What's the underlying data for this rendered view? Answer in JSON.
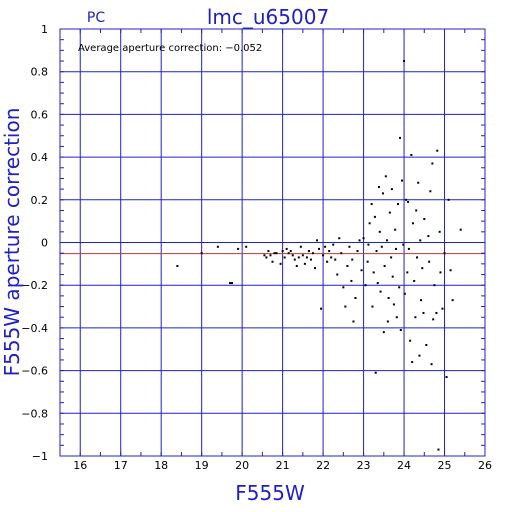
{
  "chart_data": {
    "type": "scatter",
    "title": "lmc_u65007",
    "subtitle": "PC",
    "xlabel": "F555W",
    "ylabel": "F555W aperture correction",
    "xlim": [
      15.5,
      26
    ],
    "ylim": [
      -1,
      1
    ],
    "x_ticks": [
      16,
      17,
      18,
      19,
      20,
      21,
      22,
      23,
      24,
      25,
      26
    ],
    "y_ticks": [
      -1,
      -0.8,
      -0.6,
      -0.4,
      -0.2,
      0,
      0.2,
      0.4,
      0.6,
      0.8,
      1
    ],
    "x_tick_labels": [
      "16",
      "17",
      "18",
      "19",
      "20",
      "21",
      "22",
      "23",
      "24",
      "25",
      "26"
    ],
    "y_tick_labels": [
      "−1",
      "−0.8",
      "−0.6",
      "−0.4",
      "−0.2",
      "0",
      "0.2",
      "0.4",
      "0.6",
      "0.8",
      "1"
    ],
    "grid": true,
    "annotation": "Average aperture correction: −0.052",
    "average_line_y": -0.052,
    "colors": {
      "axes": "#2020c8",
      "grid": "#2020c8",
      "points": "#000000",
      "average_line": "#c83232",
      "text": "#2020c8"
    },
    "points": [
      [
        18.4,
        -0.11
      ],
      [
        19.0,
        -0.05
      ],
      [
        19.4,
        -0.02
      ],
      [
        19.7,
        -0.19
      ],
      [
        19.75,
        -0.19
      ],
      [
        19.9,
        -0.03
      ],
      [
        20.1,
        -0.02
      ],
      [
        20.55,
        -0.06
      ],
      [
        20.6,
        -0.07
      ],
      [
        20.65,
        -0.04
      ],
      [
        20.7,
        -0.06
      ],
      [
        20.75,
        -0.09
      ],
      [
        20.8,
        -0.05
      ],
      [
        20.85,
        -0.05
      ],
      [
        20.95,
        -0.1
      ],
      [
        21.0,
        -0.04
      ],
      [
        21.05,
        -0.07
      ],
      [
        21.1,
        -0.03
      ],
      [
        21.15,
        -0.05
      ],
      [
        21.2,
        -0.04
      ],
      [
        21.25,
        -0.06
      ],
      [
        21.3,
        -0.08
      ],
      [
        21.35,
        -0.11
      ],
      [
        21.4,
        -0.07
      ],
      [
        21.45,
        -0.02
      ],
      [
        21.5,
        -0.06
      ],
      [
        21.55,
        -0.1
      ],
      [
        21.6,
        -0.07
      ],
      [
        21.65,
        -0.04
      ],
      [
        21.7,
        -0.08
      ],
      [
        21.75,
        -0.05
      ],
      [
        21.8,
        -0.12
      ],
      [
        21.85,
        0.01
      ],
      [
        21.9,
        -0.03
      ],
      [
        21.95,
        -0.31
      ],
      [
        22.0,
        -0.06
      ],
      [
        22.05,
        -0.02
      ],
      [
        22.1,
        -0.09
      ],
      [
        22.15,
        -0.04
      ],
      [
        22.2,
        -0.07
      ],
      [
        22.25,
        -0.01
      ],
      [
        22.3,
        -0.08
      ],
      [
        22.35,
        -0.15
      ],
      [
        22.4,
        0.02
      ],
      [
        22.45,
        -0.05
      ],
      [
        22.5,
        -0.21
      ],
      [
        22.55,
        -0.3
      ],
      [
        22.6,
        -0.11
      ],
      [
        22.65,
        -0.02
      ],
      [
        22.7,
        -0.18
      ],
      [
        22.72,
        -0.08
      ],
      [
        22.75,
        -0.37
      ],
      [
        22.8,
        -0.26
      ],
      [
        22.85,
        -0.04
      ],
      [
        22.9,
        0.01
      ],
      [
        22.95,
        -0.13
      ],
      [
        23.0,
        0.02
      ],
      [
        23.05,
        -0.2
      ],
      [
        23.1,
        -0.09
      ],
      [
        23.12,
        -0.01
      ],
      [
        23.15,
        0.09
      ],
      [
        23.2,
        0.18
      ],
      [
        23.22,
        -0.3
      ],
      [
        23.25,
        -0.14
      ],
      [
        23.28,
        0.12
      ],
      [
        23.3,
        -0.61
      ],
      [
        23.32,
        -0.04
      ],
      [
        23.35,
        -0.19
      ],
      [
        23.38,
        0.26
      ],
      [
        23.4,
        0.05
      ],
      [
        23.42,
        -0.23
      ],
      [
        23.45,
        -0.02
      ],
      [
        23.48,
        0.23
      ],
      [
        23.5,
        -0.42
      ],
      [
        23.52,
        -0.11
      ],
      [
        23.55,
        0.31
      ],
      [
        23.58,
        0.01
      ],
      [
        23.6,
        -0.37
      ],
      [
        23.62,
        -0.26
      ],
      [
        23.65,
        0.14
      ],
      [
        23.68,
        -0.07
      ],
      [
        23.7,
        0.25
      ],
      [
        23.72,
        -0.16
      ],
      [
        23.75,
        -0.29
      ],
      [
        23.78,
        0.06
      ],
      [
        23.8,
        -0.03
      ],
      [
        23.82,
        -0.35
      ],
      [
        23.85,
        0.18
      ],
      [
        23.88,
        -0.21
      ],
      [
        23.9,
        0.49
      ],
      [
        23.92,
        -0.41
      ],
      [
        23.95,
        0.29
      ],
      [
        23.98,
        -0.01
      ],
      [
        24.0,
        0.85
      ],
      [
        24.02,
        -0.24
      ],
      [
        24.05,
        0.2
      ],
      [
        24.08,
        -0.14
      ],
      [
        24.1,
        0.19
      ],
      [
        24.12,
        -0.03
      ],
      [
        24.15,
        -0.46
      ],
      [
        24.18,
        0.41
      ],
      [
        24.2,
        -0.56
      ],
      [
        24.22,
        0.09
      ],
      [
        24.25,
        -0.18
      ],
      [
        24.28,
        -0.35
      ],
      [
        24.3,
        0.15
      ],
      [
        24.32,
        -0.07
      ],
      [
        24.35,
        0.28
      ],
      [
        24.38,
        -0.53
      ],
      [
        24.4,
        0.01
      ],
      [
        24.42,
        -0.27
      ],
      [
        24.45,
        -0.12
      ],
      [
        24.48,
        -0.33
      ],
      [
        24.5,
        0.11
      ],
      [
        24.55,
        -0.48
      ],
      [
        24.6,
        0.03
      ],
      [
        24.62,
        -0.09
      ],
      [
        24.65,
        0.24
      ],
      [
        24.68,
        -0.57
      ],
      [
        24.7,
        0.37
      ],
      [
        24.72,
        -0.36
      ],
      [
        24.75,
        -0.2
      ],
      [
        24.8,
        -0.33
      ],
      [
        24.82,
        0.43
      ],
      [
        24.85,
        -0.97
      ],
      [
        24.88,
        0.05
      ],
      [
        24.9,
        -0.14
      ],
      [
        24.95,
        -0.31
      ],
      [
        25.0,
        -0.05
      ],
      [
        25.05,
        -0.63
      ],
      [
        25.1,
        0.2
      ],
      [
        25.15,
        -0.13
      ],
      [
        25.2,
        -0.27
      ],
      [
        25.4,
        0.06
      ]
    ]
  }
}
